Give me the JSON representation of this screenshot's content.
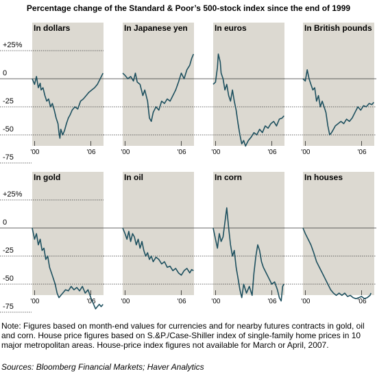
{
  "page": {
    "title": "Percentage change of the Standard & Poor’s 500-stock index since the end of 1999",
    "note": "Note:  Figures based on month-end values for currencies and for nearby futures contracts in gold, oil and corn.  House price figures based on S.&P./Case-Shiller index of single-family home prices in 10 major metropolitan areas.  House-price index figures not available for March or April, 2007.",
    "sources": "Sources: Bloomberg Financial Markets; Haver Analytics"
  },
  "colors": {
    "panel_bg": "#dcd9d1",
    "line": "#1c4f5e",
    "grid": "#333333"
  },
  "chart_data": [
    {
      "type": "line",
      "title": "In dollars",
      "ylim": [
        -75,
        25
      ],
      "yticks": [
        "+25%",
        "0",
        "-25",
        "-50",
        "-75"
      ],
      "ytick_values": [
        25,
        0,
        -25,
        -50,
        -75
      ],
      "xticks": [
        "'00",
        "'06"
      ],
      "xtick_values": [
        2000,
        2006
      ],
      "xlim": [
        1999.75,
        2007.35
      ],
      "x": [
        1999.75,
        2000.0,
        2000.2,
        2000.4,
        2000.6,
        2000.7,
        2000.9,
        2001.1,
        2001.3,
        2001.5,
        2001.7,
        2001.9,
        2002.1,
        2002.3,
        2002.5,
        2002.6,
        2002.7,
        2002.8,
        2003.0,
        2003.2,
        2003.4,
        2003.6,
        2003.8,
        2004.0,
        2004.3,
        2004.6,
        2004.9,
        2005.2,
        2005.5,
        2005.8,
        2006.1,
        2006.4,
        2006.7,
        2007.0,
        2007.3
      ],
      "y": [
        0,
        -5,
        2,
        -8,
        -4,
        -10,
        -8,
        -15,
        -20,
        -18,
        -25,
        -22,
        -28,
        -35,
        -40,
        -48,
        -53,
        -45,
        -50,
        -46,
        -40,
        -35,
        -32,
        -28,
        -25,
        -27,
        -20,
        -18,
        -15,
        -12,
        -10,
        -8,
        -5,
        0,
        5
      ]
    },
    {
      "type": "line",
      "title": "In Japanese yen",
      "ylim": [
        -75,
        25
      ],
      "yticks": [
        "+25%",
        "0",
        "-25",
        "-50",
        "-75"
      ],
      "ytick_values": [
        25,
        0,
        -25,
        -50,
        -75
      ],
      "xticks": [
        "'00",
        "'06"
      ],
      "xtick_values": [
        2000,
        2006
      ],
      "xlim": [
        1999.75,
        2007.35
      ],
      "x": [
        1999.75,
        2000.0,
        2000.3,
        2000.6,
        2000.9,
        2001.1,
        2001.3,
        2001.6,
        2001.9,
        2002.1,
        2002.4,
        2002.6,
        2002.8,
        2003.0,
        2003.3,
        2003.6,
        2003.9,
        2004.2,
        2004.5,
        2004.8,
        2005.1,
        2005.4,
        2005.7,
        2006.0,
        2006.3,
        2006.6,
        2006.9,
        2007.1,
        2007.3
      ],
      "y": [
        5,
        3,
        0,
        2,
        -2,
        5,
        -3,
        -5,
        -15,
        -10,
        -20,
        -35,
        -38,
        -30,
        -25,
        -28,
        -20,
        -22,
        -18,
        -20,
        -15,
        -10,
        -3,
        5,
        0,
        8,
        12,
        18,
        22
      ]
    },
    {
      "type": "line",
      "title": "In euros",
      "ylim": [
        -75,
        25
      ],
      "yticks": [
        "+25%",
        "0",
        "-25",
        "-50",
        "-75"
      ],
      "ytick_values": [
        25,
        0,
        -25,
        -50,
        -75
      ],
      "xticks": [
        "'00",
        "'06"
      ],
      "xtick_values": [
        2000,
        2006
      ],
      "xlim": [
        1999.75,
        2007.35
      ],
      "x": [
        1999.75,
        2000.0,
        2000.2,
        2000.3,
        2000.5,
        2000.6,
        2000.8,
        2001.0,
        2001.2,
        2001.4,
        2001.6,
        2001.8,
        2002.0,
        2002.2,
        2002.4,
        2002.6,
        2002.8,
        2003.0,
        2003.2,
        2003.5,
        2003.8,
        2004.1,
        2004.4,
        2004.7,
        2005.0,
        2005.3,
        2005.6,
        2005.9,
        2006.2,
        2006.5,
        2006.8,
        2007.1,
        2007.3
      ],
      "y": [
        -5,
        -3,
        10,
        22,
        15,
        5,
        0,
        -10,
        -5,
        -15,
        -20,
        -10,
        -20,
        -28,
        -40,
        -50,
        -58,
        -55,
        -60,
        -55,
        -52,
        -48,
        -50,
        -45,
        -48,
        -42,
        -44,
        -40,
        -38,
        -42,
        -36,
        -35,
        -33
      ]
    },
    {
      "type": "line",
      "title": "In British pounds",
      "ylim": [
        -75,
        25
      ],
      "yticks": [
        "+25%",
        "0",
        "-25",
        "-50",
        "-75"
      ],
      "ytick_values": [
        25,
        0,
        -25,
        -50,
        -75
      ],
      "xticks": [
        "'00",
        "'06"
      ],
      "xtick_values": [
        2000,
        2006
      ],
      "xlim": [
        1999.75,
        2007.35
      ],
      "x": [
        1999.75,
        2000.0,
        2000.2,
        2000.4,
        2000.6,
        2000.8,
        2001.0,
        2001.2,
        2001.4,
        2001.6,
        2001.8,
        2002.0,
        2002.2,
        2002.4,
        2002.6,
        2002.8,
        2003.0,
        2003.2,
        2003.5,
        2003.8,
        2004.1,
        2004.4,
        2004.7,
        2005.0,
        2005.3,
        2005.6,
        2005.9,
        2006.2,
        2006.5,
        2006.8,
        2007.1,
        2007.3
      ],
      "y": [
        0,
        -2,
        8,
        0,
        -5,
        -10,
        -8,
        -20,
        -15,
        -25,
        -20,
        -25,
        -30,
        -42,
        -50,
        -48,
        -45,
        -42,
        -40,
        -38,
        -40,
        -36,
        -38,
        -35,
        -30,
        -25,
        -28,
        -24,
        -25,
        -22,
        -23,
        -21
      ]
    },
    {
      "type": "line",
      "title": "In gold",
      "ylim": [
        -75,
        25
      ],
      "yticks": [
        "+25%",
        "0",
        "-25",
        "-50",
        "-75"
      ],
      "ytick_values": [
        25,
        0,
        -25,
        -50,
        -75
      ],
      "xticks": [
        "'00",
        "'06"
      ],
      "xtick_values": [
        2000,
        2006
      ],
      "xlim": [
        1999.75,
        2007.35
      ],
      "x": [
        1999.75,
        2000.0,
        2000.2,
        2000.4,
        2000.6,
        2000.8,
        2001.0,
        2001.2,
        2001.4,
        2001.6,
        2001.8,
        2002.0,
        2002.2,
        2002.4,
        2002.6,
        2002.8,
        2003.0,
        2003.3,
        2003.6,
        2003.9,
        2004.2,
        2004.5,
        2004.8,
        2005.1,
        2005.4,
        2005.7,
        2006.0,
        2006.3,
        2006.5,
        2006.7,
        2006.9,
        2007.1,
        2007.3
      ],
      "y": [
        0,
        -10,
        -5,
        -15,
        -10,
        -20,
        -18,
        -28,
        -25,
        -35,
        -40,
        -45,
        -50,
        -58,
        -62,
        -60,
        -58,
        -55,
        -56,
        -52,
        -55,
        -53,
        -56,
        -52,
        -58,
        -55,
        -62,
        -68,
        -72,
        -70,
        -68,
        -70,
        -68
      ]
    },
    {
      "type": "line",
      "title": "In oil",
      "ylim": [
        -75,
        25
      ],
      "yticks": [
        "+25%",
        "0",
        "-25",
        "-50",
        "-75"
      ],
      "ytick_values": [
        25,
        0,
        -25,
        -50,
        -75
      ],
      "xticks": [
        "'00",
        "'06"
      ],
      "xtick_values": [
        2000,
        2006
      ],
      "xlim": [
        1999.75,
        2007.35
      ],
      "x": [
        1999.75,
        2000.0,
        2000.2,
        2000.4,
        2000.6,
        2000.8,
        2001.0,
        2001.2,
        2001.4,
        2001.6,
        2001.8,
        2002.0,
        2002.2,
        2002.4,
        2002.6,
        2002.8,
        2003.0,
        2003.3,
        2003.6,
        2003.9,
        2004.2,
        2004.5,
        2004.8,
        2005.1,
        2005.4,
        2005.7,
        2006.0,
        2006.3,
        2006.6,
        2006.9,
        2007.1,
        2007.3
      ],
      "y": [
        0,
        -5,
        -10,
        -3,
        -12,
        -5,
        -8,
        -15,
        -10,
        -18,
        -12,
        -20,
        -25,
        -22,
        -28,
        -25,
        -30,
        -26,
        -28,
        -32,
        -30,
        -35,
        -34,
        -38,
        -36,
        -40,
        -42,
        -38,
        -36,
        -40,
        -37,
        -38
      ]
    },
    {
      "type": "line",
      "title": "In corn",
      "ylim": [
        -75,
        25
      ],
      "yticks": [
        "+25%",
        "0",
        "-25",
        "-50",
        "-75"
      ],
      "ytick_values": [
        25,
        0,
        -25,
        -50,
        -75
      ],
      "xticks": [
        "'00",
        "'06"
      ],
      "xtick_values": [
        2000,
        2006
      ],
      "xlim": [
        1999.75,
        2007.35
      ],
      "x": [
        1999.75,
        2000.0,
        2000.2,
        2000.4,
        2000.6,
        2000.8,
        2001.0,
        2001.2,
        2001.4,
        2001.6,
        2001.8,
        2002.0,
        2002.2,
        2002.4,
        2002.6,
        2002.8,
        2003.0,
        2003.3,
        2003.6,
        2003.9,
        2004.1,
        2004.3,
        2004.5,
        2004.7,
        2004.9,
        2005.1,
        2005.4,
        2005.7,
        2006.0,
        2006.3,
        2006.6,
        2006.8,
        2007.0,
        2007.15,
        2007.3
      ],
      "y": [
        0,
        -10,
        -18,
        -5,
        -12,
        -8,
        5,
        18,
        0,
        -15,
        -25,
        -20,
        -35,
        -45,
        -55,
        -62,
        -50,
        -58,
        -52,
        -60,
        -40,
        -25,
        -15,
        -20,
        -30,
        -35,
        -40,
        -45,
        -50,
        -48,
        -55,
        -62,
        -65,
        -52,
        -50
      ]
    },
    {
      "type": "line",
      "title": "In houses",
      "ylim": [
        -75,
        25
      ],
      "yticks": [
        "+25%",
        "0",
        "-25",
        "-50",
        "-75"
      ],
      "ytick_values": [
        25,
        0,
        -25,
        -50,
        -75
      ],
      "xticks": [
        "'00",
        "'06"
      ],
      "xtick_values": [
        2000,
        2006
      ],
      "xlim": [
        1999.75,
        2007.35
      ],
      "x": [
        1999.75,
        2000.0,
        2000.3,
        2000.6,
        2000.9,
        2001.2,
        2001.5,
        2001.8,
        2002.1,
        2002.4,
        2002.7,
        2003.0,
        2003.3,
        2003.6,
        2003.9,
        2004.2,
        2004.5,
        2004.8,
        2005.1,
        2005.4,
        2005.7,
        2006.0,
        2006.3,
        2006.6,
        2006.9,
        2007.0
      ],
      "y": [
        0,
        -5,
        -10,
        -15,
        -22,
        -30,
        -35,
        -40,
        -45,
        -50,
        -55,
        -58,
        -60,
        -58,
        -60,
        -58,
        -61,
        -60,
        -62,
        -63,
        -62,
        -61,
        -63,
        -62,
        -60,
        -58
      ]
    }
  ]
}
